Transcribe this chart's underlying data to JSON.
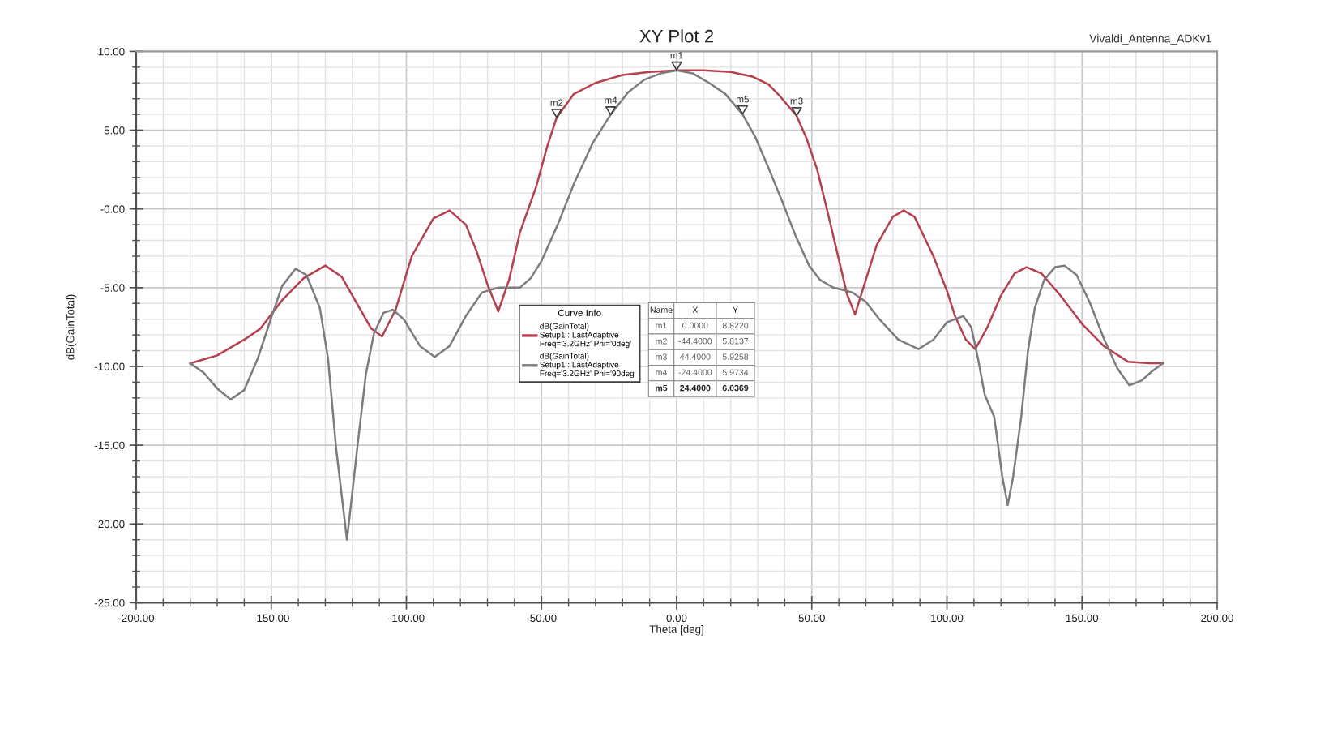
{
  "chart_data": {
    "type": "line",
    "title": "XY Plot 2",
    "xlabel": "Theta [deg]",
    "ylabel": "dB(GainTotal)",
    "legend_title": "Curve Info",
    "legend": "center",
    "grid": true,
    "xlim": [
      -200,
      200
    ],
    "ylim": [
      -25,
      10
    ],
    "xticks": [
      {
        "value": -200,
        "label": "-200.00"
      },
      {
        "value": -190,
        "label": null
      },
      {
        "value": -180,
        "label": null
      },
      {
        "value": -170,
        "label": null
      },
      {
        "value": -160,
        "label": null
      },
      {
        "value": -150,
        "label": "-150.00"
      },
      {
        "value": -140,
        "label": null
      },
      {
        "value": -130,
        "label": null
      },
      {
        "value": -120,
        "label": null
      },
      {
        "value": -110,
        "label": null
      },
      {
        "value": -100,
        "label": "-100.00"
      },
      {
        "value": -90,
        "label": null
      },
      {
        "value": -80,
        "label": null
      },
      {
        "value": -70,
        "label": null
      },
      {
        "value": -60,
        "label": null
      },
      {
        "value": -50,
        "label": "-50.00"
      },
      {
        "value": -40,
        "label": null
      },
      {
        "value": -30,
        "label": null
      },
      {
        "value": -20,
        "label": null
      },
      {
        "value": -10,
        "label": null
      },
      {
        "value": 0,
        "label": "0.00"
      },
      {
        "value": 10,
        "label": null
      },
      {
        "value": 20,
        "label": null
      },
      {
        "value": 30,
        "label": null
      },
      {
        "value": 40,
        "label": null
      },
      {
        "value": 50,
        "label": "50.00"
      },
      {
        "value": 60,
        "label": null
      },
      {
        "value": 70,
        "label": null
      },
      {
        "value": 80,
        "label": null
      },
      {
        "value": 90,
        "label": null
      },
      {
        "value": 100,
        "label": "100.00"
      },
      {
        "value": 110,
        "label": null
      },
      {
        "value": 120,
        "label": null
      },
      {
        "value": 130,
        "label": null
      },
      {
        "value": 140,
        "label": null
      },
      {
        "value": 150,
        "label": "150.00"
      },
      {
        "value": 160,
        "label": null
      },
      {
        "value": 170,
        "label": null
      },
      {
        "value": 180,
        "label": null
      },
      {
        "value": 190,
        "label": null
      },
      {
        "value": 200,
        "label": "200.00"
      }
    ],
    "yticks": [
      {
        "value": -25,
        "label": "-25.00"
      },
      {
        "value": -24,
        "label": null
      },
      {
        "value": -23,
        "label": null
      },
      {
        "value": -22,
        "label": null
      },
      {
        "value": -21,
        "label": null
      },
      {
        "value": -20,
        "label": "-20.00"
      },
      {
        "value": -19,
        "label": null
      },
      {
        "value": -18,
        "label": null
      },
      {
        "value": -17,
        "label": null
      },
      {
        "value": -16,
        "label": null
      },
      {
        "value": -15,
        "label": "-15.00"
      },
      {
        "value": -14,
        "label": null
      },
      {
        "value": -13,
        "label": null
      },
      {
        "value": -12,
        "label": null
      },
      {
        "value": -11,
        "label": null
      },
      {
        "value": -10,
        "label": "-10.00"
      },
      {
        "value": -9,
        "label": null
      },
      {
        "value": -8,
        "label": null
      },
      {
        "value": -7,
        "label": null
      },
      {
        "value": -6,
        "label": null
      },
      {
        "value": -5,
        "label": "-5.00"
      },
      {
        "value": -4,
        "label": null
      },
      {
        "value": -3,
        "label": null
      },
      {
        "value": -2,
        "label": null
      },
      {
        "value": -1,
        "label": null
      },
      {
        "value": 0,
        "label": "-0.00"
      },
      {
        "value": 1,
        "label": null
      },
      {
        "value": 2,
        "label": null
      },
      {
        "value": 3,
        "label": null
      },
      {
        "value": 4,
        "label": null
      },
      {
        "value": 5,
        "label": "5.00"
      },
      {
        "value": 6,
        "label": null
      },
      {
        "value": 7,
        "label": null
      },
      {
        "value": 8,
        "label": null
      },
      {
        "value": 9,
        "label": null
      },
      {
        "value": 10,
        "label": "10.00"
      }
    ],
    "series": [
      {
        "name": "dB(GainTotal)\nSetup1 : LastAdaptive\nFreq='3.2GHz' Phi='0deg'",
        "color": "#b5404f",
        "x": [
          -180,
          -170,
          -160,
          -154,
          -146,
          -138,
          -130,
          -124,
          -118,
          -113,
          -109,
          -104,
          -98,
          -90,
          -84,
          -78,
          -74,
          -70,
          -66,
          -62,
          -58,
          -52,
          -48,
          -44.4,
          -38,
          -30,
          -20,
          -10,
          0,
          10,
          20,
          28,
          34,
          38,
          44.4,
          48,
          52,
          56,
          60,
          63,
          66,
          70,
          74,
          80,
          84,
          88,
          95,
          100,
          103,
          107,
          110.5,
          115,
          120,
          125,
          129.5,
          135,
          142,
          150,
          158,
          167,
          175,
          180
        ],
        "values": [
          -9.8,
          -9.3,
          -8.3,
          -7.6,
          -5.8,
          -4.4,
          -3.6,
          -4.3,
          -6.1,
          -7.6,
          -8.1,
          -6.4,
          -3.0,
          -0.6,
          -0.1,
          -1.0,
          -2.7,
          -4.8,
          -6.5,
          -4.5,
          -1.5,
          1.4,
          3.9,
          5.8,
          7.3,
          8.0,
          8.5,
          8.7,
          8.8,
          8.8,
          8.7,
          8.4,
          7.9,
          7.2,
          5.9,
          4.5,
          2.5,
          -0.3,
          -3.2,
          -5.4,
          -6.7,
          -4.5,
          -2.3,
          -0.5,
          -0.1,
          -0.5,
          -3.0,
          -5.2,
          -6.8,
          -8.3,
          -8.9,
          -7.5,
          -5.5,
          -4.1,
          -3.7,
          -4.1,
          -5.5,
          -7.3,
          -8.7,
          -9.7,
          -9.8,
          -9.8
        ]
      },
      {
        "name": "dB(GainTotal)\nSetup1 : LastAdaptive\nFreq='3.2GHz' Phi='90deg'",
        "color": "#7f7a80",
        "x": [
          -180,
          -175,
          -170,
          -165,
          -160,
          -155,
          -150,
          -146,
          -141,
          -137,
          -132,
          -129,
          -126,
          -124,
          -122,
          -120,
          -118,
          -115,
          -112,
          -108.5,
          -105,
          -101,
          -95,
          -89.5,
          -84,
          -78,
          -72,
          -66,
          -58,
          -54,
          -50,
          -44,
          -38,
          -31,
          -24.4,
          -18,
          -12,
          -6,
          0,
          6,
          12,
          18,
          24.4,
          29,
          34,
          39,
          44,
          49,
          53,
          58,
          65,
          70,
          75,
          82,
          89.5,
          95,
          100,
          106,
          109,
          111.5,
          114,
          117.5,
          120.5,
          122.5,
          124.5,
          127.5,
          130,
          132.5,
          136,
          140,
          143.5,
          148,
          153,
          158,
          163,
          167.5,
          172,
          176,
          180
        ],
        "values": [
          -9.8,
          -10.4,
          -11.4,
          -12.1,
          -11.5,
          -9.5,
          -6.9,
          -4.9,
          -3.8,
          -4.2,
          -6.3,
          -9.5,
          -15.2,
          -18.1,
          -21.0,
          -18.0,
          -14.9,
          -10.5,
          -7.9,
          -6.6,
          -6.4,
          -7.0,
          -8.7,
          -9.4,
          -8.7,
          -6.8,
          -5.3,
          -5.0,
          -5.0,
          -4.4,
          -3.3,
          -1.0,
          1.6,
          4.2,
          6.0,
          7.4,
          8.2,
          8.6,
          8.8,
          8.6,
          8.0,
          7.3,
          6.0,
          4.6,
          2.6,
          0.5,
          -1.7,
          -3.6,
          -4.5,
          -5.0,
          -5.3,
          -5.9,
          -7.0,
          -8.3,
          -8.9,
          -8.3,
          -7.2,
          -6.8,
          -7.5,
          -9.5,
          -11.8,
          -13.2,
          -17.0,
          -18.8,
          -17.0,
          -13.2,
          -9.0,
          -6.3,
          -4.5,
          -3.7,
          -3.6,
          -4.2,
          -6.0,
          -8.2,
          -10.1,
          -11.2,
          -10.9,
          -10.3,
          -9.8
        ]
      }
    ],
    "annotations": [
      "Vivaldi_Antenna_ADKv1",
      "Name",
      "X",
      "Y",
      "m1",
      "0.0000",
      "8.8220",
      "m2",
      "-44.4000",
      "5.8137",
      "m3",
      "44.4000",
      "5.9258",
      "m4",
      "-24.4000",
      "5.9734",
      "m5",
      "24.4000",
      "6.0369",
      {
        "text": "m1",
        "x": 0.0,
        "y": 8.822
      },
      {
        "text": "m2",
        "x": -44.4,
        "y": 5.8137
      },
      {
        "text": "m3",
        "x": 44.4,
        "y": 5.9258
      },
      {
        "text": "m4",
        "x": -24.4,
        "y": 5.9734
      },
      {
        "text": "m5",
        "x": 24.4,
        "y": 6.0369
      }
    ]
  }
}
